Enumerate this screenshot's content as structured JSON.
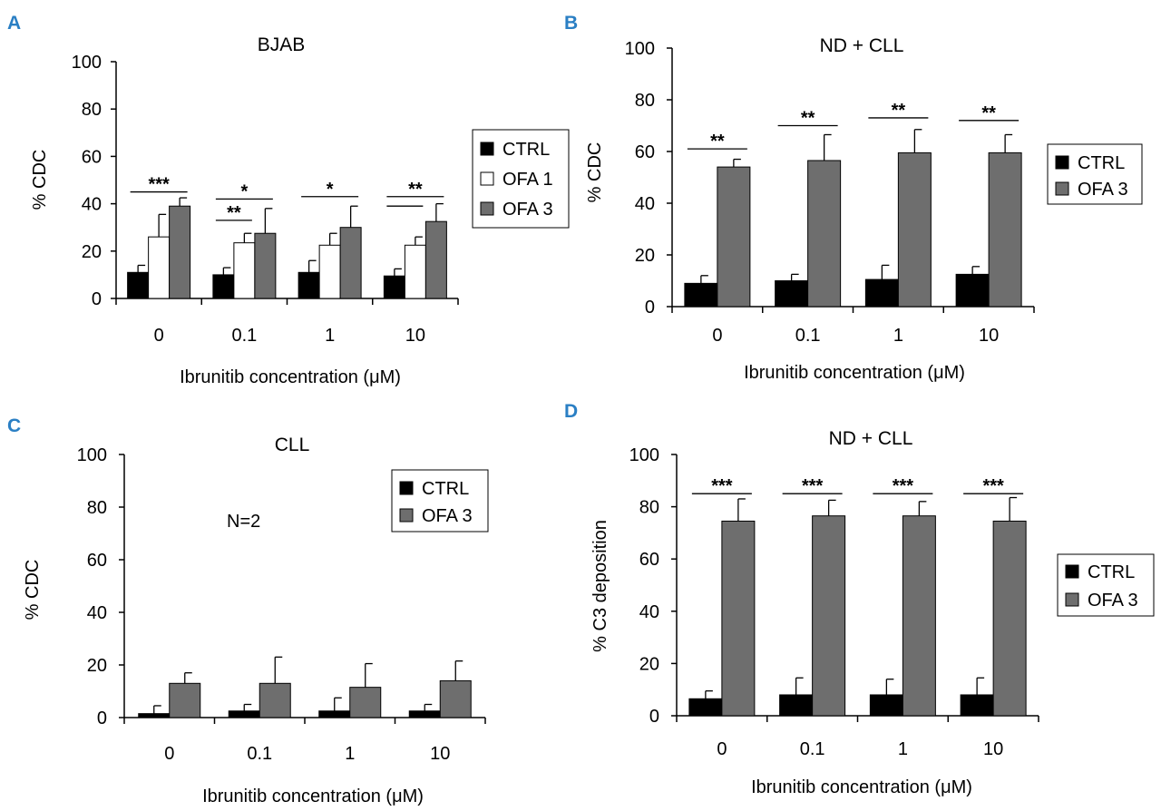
{
  "colors": {
    "ctrl": "#000000",
    "ofa1": "#ffffff",
    "ofa3": "#6e6e6e",
    "letter": "#2a7fc4"
  },
  "chart_data": [
    {
      "type": "bar",
      "panel": "A",
      "title": "BJAB",
      "xlabel": "Ibrunitib concentration (μM)",
      "ylabel": "% CDC",
      "ylim": [
        0,
        100
      ],
      "yticks": [
        "0",
        "20",
        "40",
        "60",
        "80",
        "100"
      ],
      "categories": [
        "0",
        "0.1",
        "1",
        "10"
      ],
      "series": [
        {
          "name": "CTRL",
          "color": "#000000",
          "values": [
            11,
            10,
            11,
            9.5
          ],
          "errors": [
            3,
            3,
            5,
            3
          ]
        },
        {
          "name": "OFA 1",
          "color": "#ffffff",
          "values": [
            26,
            23.5,
            22.5,
            22.5
          ],
          "errors": [
            9.5,
            4,
            5,
            3.5
          ]
        },
        {
          "name": "OFA 3",
          "color": "#6e6e6e",
          "values": [
            39,
            27.5,
            30,
            32.5
          ],
          "errors": [
            3.5,
            10.5,
            9,
            7.5
          ]
        }
      ],
      "significance": [
        {
          "category": 0,
          "from": 0,
          "to": 2,
          "label": "***",
          "level": 45
        },
        {
          "category": 1,
          "from": 0,
          "to": 1,
          "label": "**",
          "level": 33
        },
        {
          "category": 1,
          "from": 0,
          "to": 2,
          "label": "*",
          "level": 42
        },
        {
          "category": 2,
          "from": 0,
          "to": 2,
          "label": "*",
          "level": 43
        },
        {
          "category": 3,
          "from": 0,
          "to": 1,
          "label": "",
          "level": 39
        },
        {
          "category": 3,
          "from": 0,
          "to": 2,
          "label": "**",
          "level": 43
        }
      ],
      "legend": [
        "CTRL",
        "OFA 1",
        "OFA 3"
      ],
      "annotation": ""
    },
    {
      "type": "bar",
      "panel": "B",
      "title": "ND + CLL",
      "xlabel": "Ibrunitib concentration (μM)",
      "ylabel": "% CDC",
      "ylim": [
        0,
        100
      ],
      "yticks": [
        "0",
        "20",
        "40",
        "60",
        "80",
        "100"
      ],
      "categories": [
        "0",
        "0.1",
        "1",
        "10"
      ],
      "series": [
        {
          "name": "CTRL",
          "color": "#000000",
          "values": [
            9,
            10,
            10.5,
            12.5
          ],
          "errors": [
            3,
            2.5,
            5.5,
            3
          ]
        },
        {
          "name": "OFA 3",
          "color": "#6e6e6e",
          "values": [
            54,
            56.5,
            59.5,
            59.5
          ],
          "errors": [
            3,
            10,
            9,
            7
          ]
        }
      ],
      "significance": [
        {
          "category": 0,
          "from": 0,
          "to": 1,
          "label": "**",
          "level": 61
        },
        {
          "category": 1,
          "from": 0,
          "to": 1,
          "label": "**",
          "level": 70
        },
        {
          "category": 2,
          "from": 0,
          "to": 1,
          "label": "**",
          "level": 73
        },
        {
          "category": 3,
          "from": 0,
          "to": 1,
          "label": "**",
          "level": 72
        }
      ],
      "legend": [
        "CTRL",
        "OFA 3"
      ],
      "annotation": ""
    },
    {
      "type": "bar",
      "panel": "C",
      "title": "CLL",
      "xlabel": "Ibrunitib concentration (μM)",
      "ylabel": "% CDC",
      "ylim": [
        0,
        100
      ],
      "yticks": [
        "0",
        "20",
        "40",
        "60",
        "80",
        "100"
      ],
      "categories": [
        "0",
        "0.1",
        "1",
        "10"
      ],
      "series": [
        {
          "name": "CTRL",
          "color": "#000000",
          "values": [
            1.5,
            2.5,
            2.5,
            2.5
          ],
          "errors": [
            3,
            2.5,
            5,
            2.5
          ]
        },
        {
          "name": "OFA 3",
          "color": "#6e6e6e",
          "values": [
            13,
            13,
            11.5,
            14
          ],
          "errors": [
            4,
            10,
            9,
            7.5
          ]
        }
      ],
      "significance": [],
      "legend": [
        "CTRL",
        "OFA 3"
      ],
      "annotation": "N=2"
    },
    {
      "type": "bar",
      "panel": "D",
      "title": "ND + CLL",
      "xlabel": "Ibrunitib concentration (μM)",
      "ylabel": "% C3 deposition",
      "ylim": [
        0,
        100
      ],
      "yticks": [
        "0",
        "20",
        "40",
        "60",
        "80",
        "100"
      ],
      "categories": [
        "0",
        "0.1",
        "1",
        "10"
      ],
      "series": [
        {
          "name": "CTRL",
          "color": "#000000",
          "values": [
            6.5,
            8,
            8,
            8
          ],
          "errors": [
            3,
            6.5,
            6,
            6.5
          ]
        },
        {
          "name": "OFA 3",
          "color": "#6e6e6e",
          "values": [
            74.5,
            76.5,
            76.5,
            74.5
          ],
          "errors": [
            8.5,
            6,
            5.5,
            9
          ]
        }
      ],
      "significance": [
        {
          "category": 0,
          "from": 0,
          "to": 1,
          "label": "***",
          "level": 85
        },
        {
          "category": 1,
          "from": 0,
          "to": 1,
          "label": "***",
          "level": 85
        },
        {
          "category": 2,
          "from": 0,
          "to": 1,
          "label": "***",
          "level": 85
        },
        {
          "category": 3,
          "from": 0,
          "to": 1,
          "label": "***",
          "level": 85
        }
      ],
      "legend": [
        "CTRL",
        "OFA 3"
      ],
      "annotation": ""
    }
  ]
}
